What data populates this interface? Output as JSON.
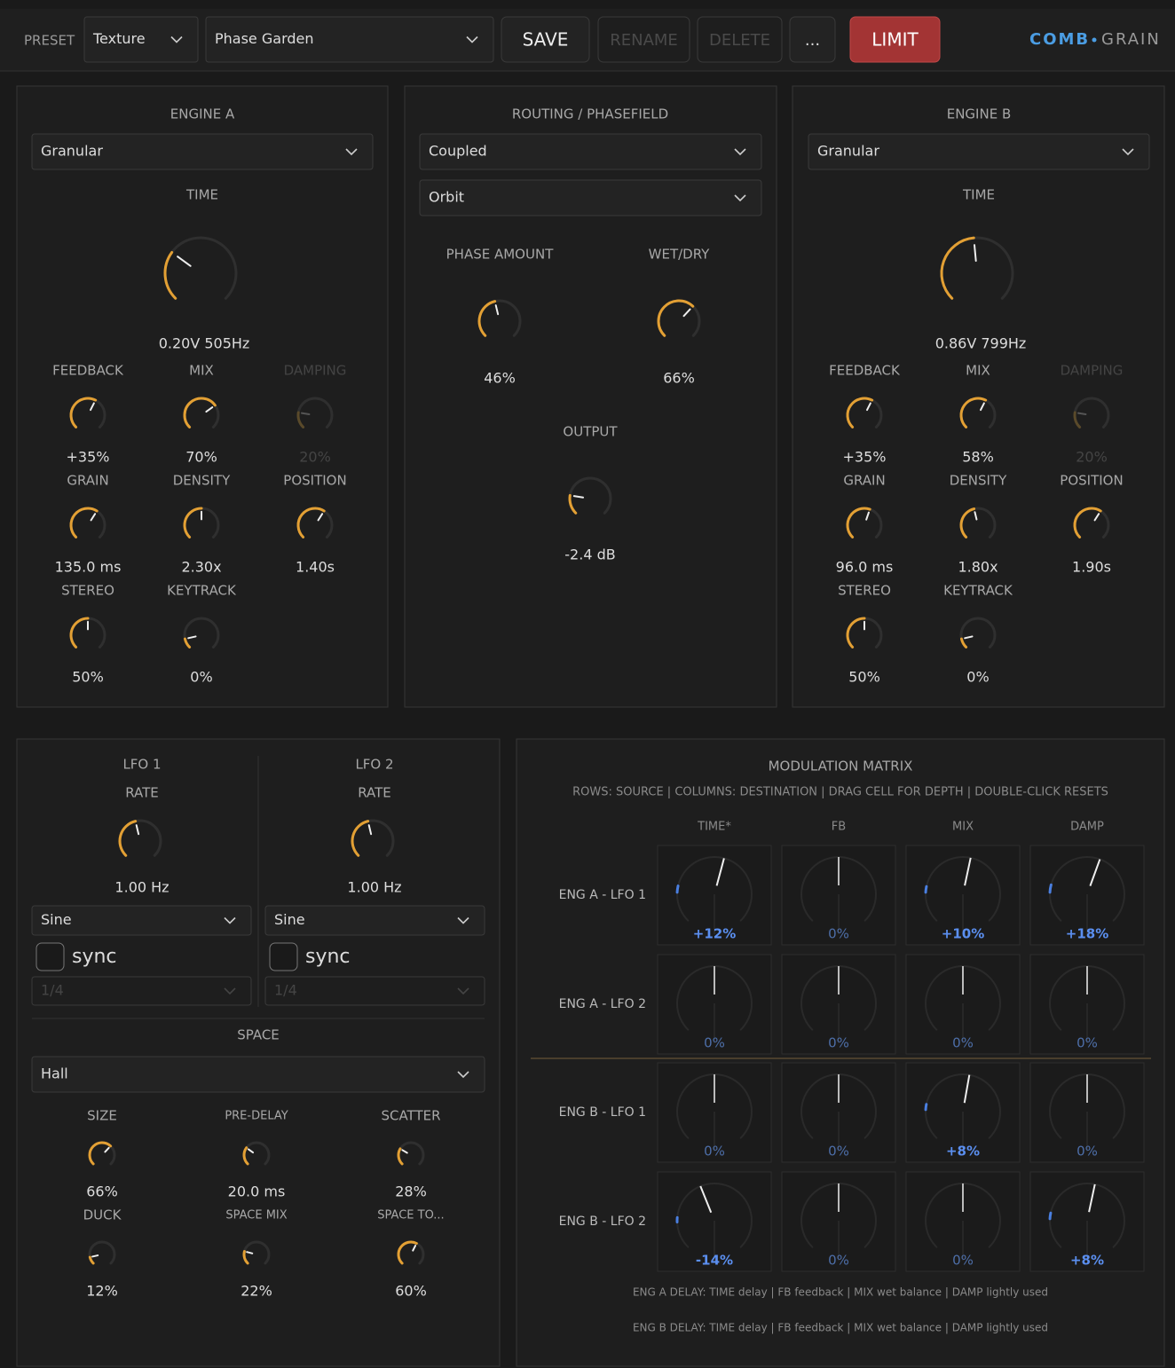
{
  "toolbar": {
    "preset_label": "PRESET",
    "preset_category": "Texture",
    "preset_name": "Phase Garden",
    "buttons": [
      "SAVE",
      "RENAME",
      "DELETE",
      "...",
      "LIMIT"
    ],
    "brand": [
      "COMB",
      "GRAIN"
    ]
  },
  "engine_a": {
    "title": "ENGINE A",
    "mode": "Granular",
    "time_label": "TIME",
    "time_value": "0.20V  505Hz",
    "knobs": [
      {
        "label": "FEEDBACK",
        "value": "+35%"
      },
      {
        "label": "MIX",
        "value": "70%"
      },
      {
        "label": "DAMPING",
        "value": "20%"
      },
      {
        "label": "GRAIN",
        "value": "135.0 ms"
      },
      {
        "label": "DENSITY",
        "value": "2.30x"
      },
      {
        "label": "POSITION",
        "value": "1.40s"
      },
      {
        "label": "STEREO",
        "value": "50%"
      },
      {
        "label": "KEYTRACK",
        "value": "0%"
      }
    ]
  },
  "routing": {
    "title": "ROUTING / PHASEFIELD",
    "mode": "Coupled",
    "shape": "Orbit",
    "knobs": [
      {
        "label": "PHASE AMOUNT",
        "value": "46%"
      },
      {
        "label": "WET/DRY",
        "value": "66%"
      },
      {
        "label": "OUTPUT",
        "value": "-2.4 dB"
      }
    ]
  },
  "engine_b": {
    "title": "ENGINE B",
    "mode": "Granular",
    "time_label": "TIME",
    "time_value": "0.86V  799Hz",
    "knobs": [
      {
        "label": "FEEDBACK",
        "value": "+35%"
      },
      {
        "label": "MIX",
        "value": "58%"
      },
      {
        "label": "DAMPING",
        "value": "20%"
      },
      {
        "label": "GRAIN",
        "value": "96.0 ms"
      },
      {
        "label": "DENSITY",
        "value": "1.80x"
      },
      {
        "label": "POSITION",
        "value": "1.90s"
      },
      {
        "label": "STEREO",
        "value": "50%"
      },
      {
        "label": "KEYTRACK",
        "value": "0%"
      }
    ]
  },
  "lfos": [
    {
      "title": "LFO 1",
      "rate_label": "RATE",
      "rate": "1.00 Hz",
      "wave": "Sine",
      "sync": "sync",
      "division": "1/4"
    },
    {
      "title": "LFO 2",
      "rate_label": "RATE",
      "rate": "1.00 Hz",
      "wave": "Sine",
      "sync": "sync",
      "division": "1/4"
    }
  ],
  "space": {
    "title": "SPACE",
    "mode": "Hall",
    "knobs": [
      {
        "label": "SIZE",
        "value": "66%"
      },
      {
        "label": "PRE-DELAY",
        "value": "20.0 ms"
      },
      {
        "label": "SCATTER",
        "value": "28%"
      },
      {
        "label": "DUCK",
        "value": "12%"
      },
      {
        "label": "SPACE MIX",
        "value": "22%"
      },
      {
        "label": "SPACE TO...",
        "value": "60%"
      }
    ]
  },
  "matrix": {
    "title": "MODULATION MATRIX",
    "subtitle": "ROWS: SOURCE | COLUMNS: DESTINATION | DRAG CELL FOR DEPTH | DOUBLE-CLICK RESETS",
    "columns": [
      "TIME*",
      "FB",
      "MIX",
      "DAMP"
    ],
    "rows": [
      {
        "label": "ENG A - LFO 1",
        "cells": [
          "+12%",
          "0%",
          "+10%",
          "+18%"
        ]
      },
      {
        "label": "ENG A - LFO 2",
        "cells": [
          "0%",
          "0%",
          "0%",
          "0%"
        ]
      },
      {
        "label": "ENG B - LFO 1",
        "cells": [
          "0%",
          "0%",
          "+8%",
          "0%"
        ]
      },
      {
        "label": "ENG B - LFO 2",
        "cells": [
          "-14%",
          "0%",
          "0%",
          "+8%"
        ]
      }
    ],
    "notes": [
      "ENG A DELAY: TIME delay | FB feedback | MIX wet balance | DAMP lightly used",
      "ENG B DELAY: TIME delay | FB feedback | MIX wet balance | DAMP lightly used"
    ]
  }
}
